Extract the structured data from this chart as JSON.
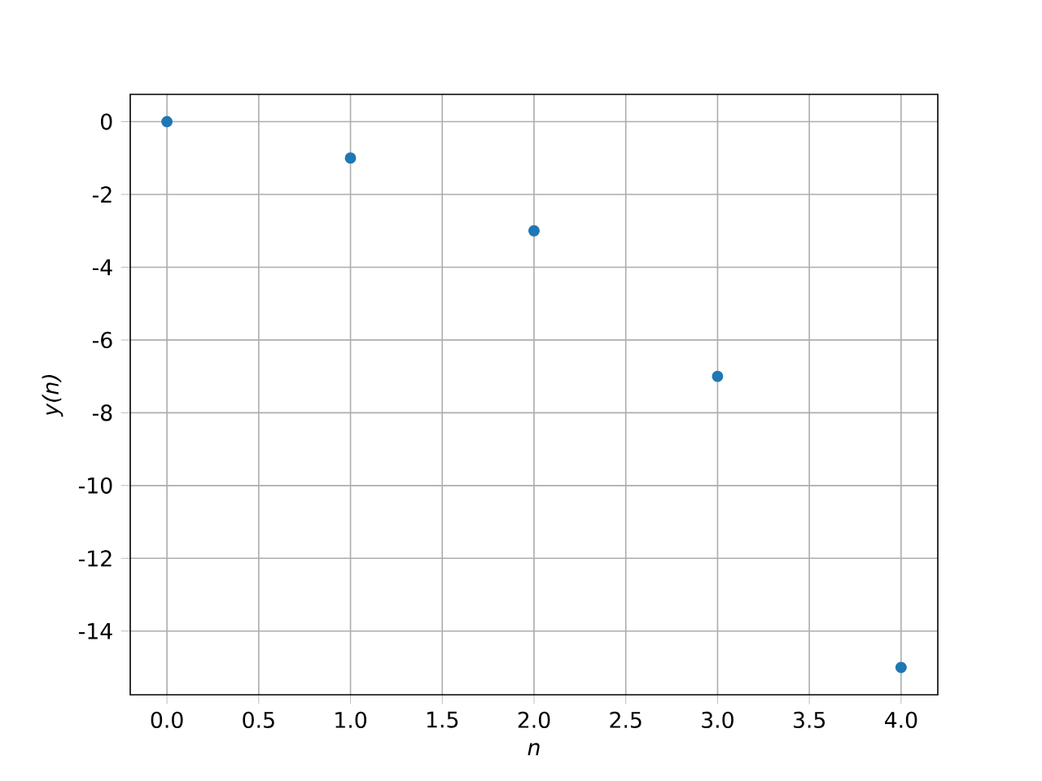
{
  "chart_data": {
    "type": "scatter",
    "xlabel": "n",
    "ylabel": "y(n)",
    "x": [
      0,
      1,
      2,
      3,
      4
    ],
    "series": [
      {
        "color": "#1f77b4",
        "values": [
          0,
          -1,
          -3,
          -7,
          -15
        ]
      }
    ],
    "xlim": [
      -0.2,
      4.2
    ],
    "ylim": [
      -15.75,
      0.75
    ],
    "xticks": [
      {
        "value": 0,
        "label": "0.0"
      },
      0.5,
      {
        "value": 1,
        "label": "1.0"
      },
      1.5,
      {
        "value": 2,
        "label": "2.0"
      },
      2.5,
      {
        "value": 3,
        "label": "3.0"
      },
      3.5,
      {
        "value": 4,
        "label": "4.0"
      }
    ],
    "yticks": [
      0,
      -2,
      -4,
      -6,
      -8,
      -10,
      -12,
      -14
    ],
    "grid": true,
    "marker": "circle"
  }
}
